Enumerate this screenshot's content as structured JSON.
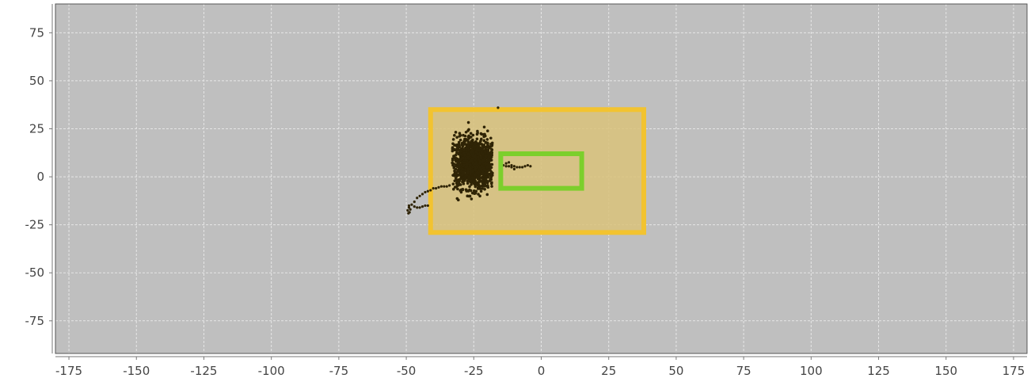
{
  "chart_data": {
    "type": "scatter",
    "title": "",
    "xlabel": "",
    "ylabel": "",
    "xlim": [
      -180,
      180
    ],
    "ylim": [
      -92,
      90
    ],
    "xticks": [
      -175,
      -150,
      -125,
      -100,
      -75,
      -50,
      -25,
      0,
      25,
      50,
      75,
      100,
      125,
      150,
      175
    ],
    "yticks": [
      75,
      50,
      25,
      0,
      -25,
      -50,
      -75
    ],
    "xtick_labels": [
      "-175",
      "-150",
      "-125",
      "-100",
      "-75",
      "-50",
      "-25",
      "0",
      "25",
      "50",
      "75",
      "100",
      "125",
      "150",
      "175"
    ],
    "ytick_labels": [
      "75",
      "50",
      "25",
      "0",
      "-25",
      "-50",
      "-75"
    ],
    "grid": true,
    "colors": {
      "plot_background": "#bfbfbf",
      "grid": "#e6e6e6",
      "points": "#2f2406",
      "outer_region_fill": "#d9c27a",
      "outer_region_stroke": "#f2c330",
      "inner_region_stroke": "#7ccf2c"
    },
    "regions": [
      {
        "name": "",
        "x": [
          -41,
          38
        ],
        "y": [
          -29,
          35
        ],
        "style": "filled-outline",
        "color": "#f2c330"
      },
      {
        "name": "",
        "x": [
          -15,
          15
        ],
        "y": [
          -6,
          12
        ],
        "style": "outline",
        "color": "#7ccf2c"
      }
    ],
    "series": [
      {
        "type": "cloud",
        "center": [
          -25,
          7
        ],
        "spread": [
          4.5,
          6.5
        ],
        "x_range": [
          -33,
          -18
        ],
        "y_range": [
          -13,
          29
        ]
      },
      {
        "type": "points",
        "points": [
          [
            -49,
            -15
          ],
          [
            -49,
            -16
          ],
          [
            -48.5,
            -17
          ],
          [
            -49.5,
            -17.5
          ],
          [
            -48.8,
            -18.5
          ],
          [
            -49.2,
            -19
          ],
          [
            -48,
            -14.5
          ],
          [
            -47,
            -15.5
          ],
          [
            -46,
            -16
          ],
          [
            -45,
            -16
          ],
          [
            -44,
            -15.5
          ],
          [
            -43,
            -15
          ],
          [
            -42,
            -15
          ],
          [
            -47,
            -13
          ],
          [
            -46,
            -11
          ],
          [
            -45,
            -10
          ],
          [
            -44,
            -9
          ],
          [
            -43,
            -8
          ],
          [
            -42,
            -7.5
          ],
          [
            -41,
            -7
          ],
          [
            -40,
            -6
          ],
          [
            -39,
            -6
          ],
          [
            -38,
            -5.5
          ],
          [
            -37,
            -5
          ],
          [
            -36,
            -5
          ],
          [
            -35,
            -5
          ],
          [
            -34,
            -4.5
          ],
          [
            -16,
            36
          ],
          [
            -14,
            6
          ],
          [
            -13,
            5.5
          ],
          [
            -12,
            5.5
          ],
          [
            -11,
            5
          ],
          [
            -10,
            5.5
          ],
          [
            -9,
            5
          ],
          [
            -8,
            5
          ],
          [
            -7,
            5
          ],
          [
            -6,
            5.5
          ],
          [
            -5,
            6
          ],
          [
            -4,
            5.5
          ],
          [
            -13,
            7
          ],
          [
            -12,
            7.5
          ],
          [
            -11,
            6
          ],
          [
            -10,
            4
          ]
        ]
      }
    ]
  }
}
